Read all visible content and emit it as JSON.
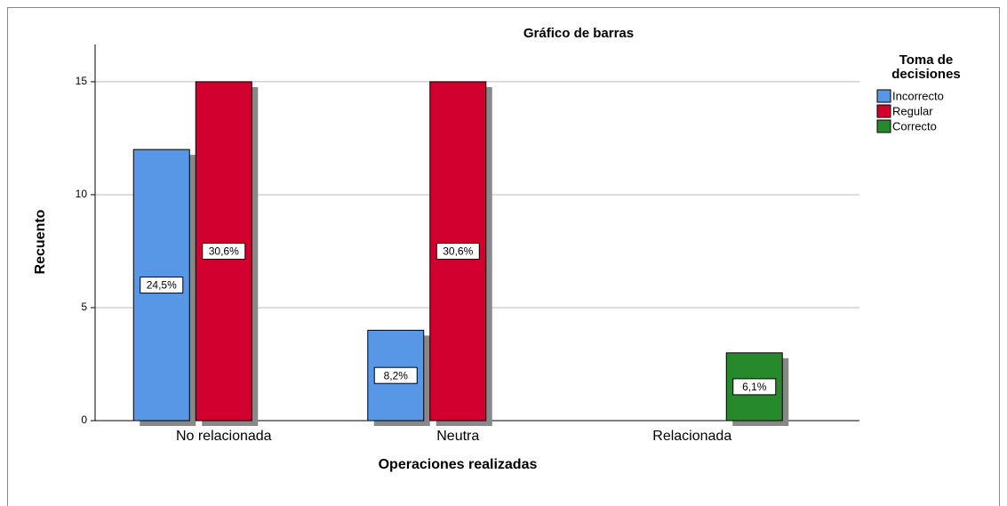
{
  "chart_data": {
    "type": "bar",
    "title": "Gráfico de barras",
    "x_label": "Operaciones realizadas",
    "y_label": "Recuento",
    "legend_title": [
      "Toma de",
      "decisiones"
    ],
    "categories": [
      "No relacionada",
      "Neutra",
      "Relacionada"
    ],
    "series": [
      {
        "name": "Incorrecto",
        "color": "#5797e6",
        "values": [
          12,
          4,
          null
        ],
        "percent_labels": [
          "24,5%",
          "8,2%",
          null
        ]
      },
      {
        "name": "Regular",
        "color": "#d2002e",
        "values": [
          15,
          15,
          null
        ],
        "percent_labels": [
          "30,6%",
          "30,6%",
          null
        ]
      },
      {
        "name": "Correcto",
        "color": "#268a2c",
        "values": [
          null,
          null,
          3
        ],
        "percent_labels": [
          null,
          null,
          "6,1%"
        ]
      }
    ],
    "ylim": [
      0,
      16.65
    ],
    "yticks": [
      0,
      5,
      10,
      15
    ],
    "grid": true,
    "legend": "right"
  }
}
